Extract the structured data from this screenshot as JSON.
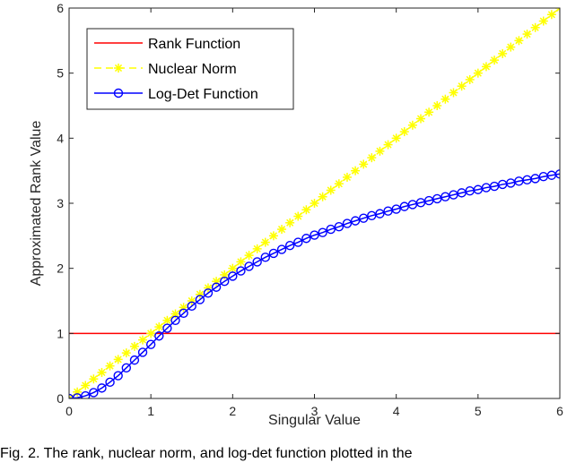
{
  "chart_data": {
    "type": "line",
    "xlabel": "Singular Value",
    "ylabel": "Approximated Rank Value",
    "xlim": [
      0,
      6
    ],
    "ylim": [
      0,
      6
    ],
    "xticks": [
      "0",
      "1",
      "2",
      "3",
      "4",
      "5",
      "6"
    ],
    "yticks": [
      "0",
      "1",
      "2",
      "3",
      "4",
      "5",
      "6"
    ],
    "grid": false,
    "legend_position": "top-left",
    "x": [
      0,
      0.1,
      0.2,
      0.3,
      0.4,
      0.5,
      0.6,
      0.7,
      0.8,
      0.9,
      1.0,
      1.1,
      1.2,
      1.3,
      1.4,
      1.5,
      1.6,
      1.7,
      1.8,
      1.9,
      2.0,
      2.1,
      2.2,
      2.3,
      2.4,
      2.5,
      2.6,
      2.7,
      2.8,
      2.9,
      3.0,
      3.1,
      3.2,
      3.3,
      3.4,
      3.5,
      3.6,
      3.7,
      3.8,
      3.9,
      4.0,
      4.1,
      4.2,
      4.3,
      4.4,
      4.5,
      4.6,
      4.7,
      4.8,
      4.9,
      5.0,
      5.1,
      5.2,
      5.3,
      5.4,
      5.5,
      5.6,
      5.7,
      5.8,
      5.9,
      6.0
    ],
    "series": [
      {
        "name": "Rank Function",
        "color": "#ff0000",
        "marker": "none",
        "values": [
          1,
          1,
          1,
          1,
          1,
          1,
          1,
          1,
          1,
          1,
          1,
          1,
          1,
          1,
          1,
          1,
          1,
          1,
          1,
          1,
          1,
          1,
          1,
          1,
          1,
          1,
          1,
          1,
          1,
          1,
          1,
          1,
          1,
          1,
          1,
          1,
          1,
          1,
          1,
          1,
          1,
          1,
          1,
          1,
          1,
          1,
          1,
          1,
          1,
          1,
          1,
          1,
          1,
          1,
          1,
          1,
          1,
          1,
          1,
          1,
          1
        ]
      },
      {
        "name": "Nuclear Norm",
        "color": "#ffff00",
        "marker": "asterisk",
        "values": [
          0,
          0.1,
          0.2,
          0.3,
          0.4,
          0.5,
          0.6,
          0.7,
          0.8,
          0.9,
          1.0,
          1.1,
          1.2,
          1.3,
          1.4,
          1.5,
          1.6,
          1.7,
          1.8,
          1.9,
          2.0,
          2.1,
          2.2,
          2.3,
          2.4,
          2.5,
          2.6,
          2.7,
          2.8,
          2.9,
          3.0,
          3.1,
          3.2,
          3.3,
          3.4,
          3.5,
          3.6,
          3.7,
          3.8,
          3.9,
          4.0,
          4.1,
          4.2,
          4.3,
          4.4,
          4.5,
          4.6,
          4.7,
          4.8,
          4.9,
          5.0,
          5.1,
          5.2,
          5.3,
          5.4,
          5.5,
          5.6,
          5.7,
          5.8,
          5.9,
          6.0
        ]
      },
      {
        "name": "Log-Det Function",
        "color": "#0000ff",
        "marker": "circle",
        "values": [
          0,
          0.01,
          0.04,
          0.09,
          0.16,
          0.25,
          0.35,
          0.47,
          0.59,
          0.71,
          0.83,
          0.96,
          1.08,
          1.2,
          1.31,
          1.42,
          1.52,
          1.62,
          1.71,
          1.8,
          1.88,
          1.96,
          2.03,
          2.1,
          2.17,
          2.23,
          2.29,
          2.35,
          2.4,
          2.46,
          2.51,
          2.55,
          2.6,
          2.64,
          2.69,
          2.73,
          2.77,
          2.81,
          2.84,
          2.88,
          2.91,
          2.95,
          2.98,
          3.01,
          3.04,
          3.07,
          3.1,
          3.13,
          3.16,
          3.19,
          3.21,
          3.24,
          3.26,
          3.29,
          3.31,
          3.34,
          3.36,
          3.38,
          3.41,
          3.43,
          3.45
        ]
      }
    ]
  },
  "caption": "Fig. 2. The rank, nuclear norm, and log-det  function plotted in the "
}
